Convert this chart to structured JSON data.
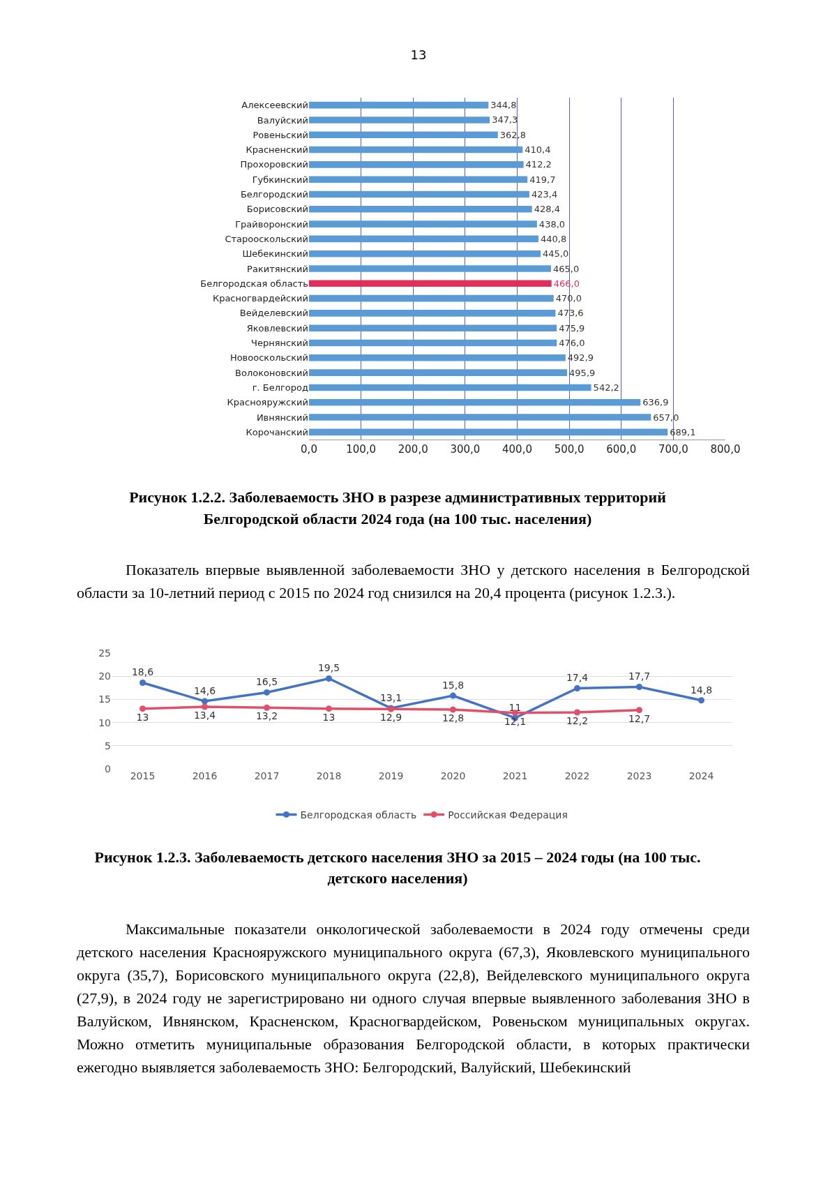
{
  "chart_data": [
    {
      "type": "bar",
      "orientation": "horizontal",
      "title": "Рисунок 1.2.2. Заболеваемость ЗНО в разрезе административных территорий Белгородской области 2024 года (на 100 тыс. населения)",
      "annotations": [
        "13",
        "Показатель впервые выявленной заболеваемости ЗНО у детского населения в Белгородской области за 10-летний период с 2015 по 2024 год снизился на 20,4 процента (рисунок 1.2.3.)."
      ],
      "categories": [
        "Алексеевский",
        "Валуйский",
        "Ровеньский",
        "Красненский",
        "Прохоровский",
        "Губкинский",
        "Белгородский",
        "Борисовский",
        "Грайворонский",
        "Старооскольский",
        "Шебекинский",
        "Ракитянский",
        "Белгородская область",
        "Красногвардейский",
        "Вейделевский",
        "Яковлевский",
        "Чернянский",
        "Новооскольский",
        "Волоконовский",
        "г. Белгород",
        "Краснояружский",
        "Ивнянский",
        "Корочанский"
      ],
      "values": [
        344.8,
        347.3,
        362.8,
        410.4,
        412.2,
        419.7,
        423.4,
        428.4,
        438.0,
        440.8,
        445.0,
        465.0,
        466.0,
        470.0,
        473.6,
        475.9,
        476.0,
        492.9,
        495.9,
        542.2,
        636.9,
        657.0,
        689.1
      ],
      "value_labels": [
        "344,8",
        "347,3",
        "362,8",
        "410,4",
        "412,2",
        "419,7",
        "423,4",
        "428,4",
        "438,0",
        "440,8",
        "445,0",
        "465,0",
        "466,0",
        "470,0",
        "473,6",
        "475,9",
        "476,0",
        "492,9",
        "495,9",
        "542,2",
        "636,9",
        "657,0",
        "689,1"
      ],
      "colors": [
        "#5b9bd5",
        "#5b9bd5",
        "#5b9bd5",
        "#5b9bd5",
        "#5b9bd5",
        "#5b9bd5",
        "#5b9bd5",
        "#5b9bd5",
        "#5b9bd5",
        "#5b9bd5",
        "#5b9bd5",
        "#5b9bd5",
        "#e0305a",
        "#5b9bd5",
        "#5b9bd5",
        "#5b9bd5",
        "#5b9bd5",
        "#5b9bd5",
        "#5b9bd5",
        "#5b9bd5",
        "#5b9bd5",
        "#5b9bd5",
        "#5b9bd5"
      ],
      "xlim": [
        0,
        800
      ],
      "xticks": [
        {
          "value": 0,
          "label": "0,0"
        },
        {
          "value": 100,
          "label": "100,0"
        },
        {
          "value": 200,
          "label": "200,0"
        },
        {
          "value": 300,
          "label": "300,0"
        },
        {
          "value": 400,
          "label": "400,0"
        },
        {
          "value": 500,
          "label": "500,0"
        },
        {
          "value": 600,
          "label": "600,0"
        },
        {
          "value": 700,
          "label": "700,0"
        },
        {
          "value": 800,
          "label": "800,0"
        }
      ],
      "grid": "x",
      "legend": false
    },
    {
      "type": "line",
      "title": "Рисунок 1.2.3. Заболеваемость детского населения ЗНО за 2015 – 2024 годы (на 100 тыс. детского населения)",
      "annotations": [
        "Максимальные показатели онкологической заболеваемости в 2024 году отмечены среди детского населения Краснояружского муниципального округа (67,3), Яковлевского муниципального округа (35,7), Борисовского муниципального округа (22,8), Вейделевского муниципального округа (27,9), в 2024 году не зарегистрировано ни одного случая впервые выявленного заболевания ЗНО в Валуйском, Ивнянском, Красненском, Красногвардейском, Ровеньском муниципальных округах. Можно отметить муниципальные образования Белгородской области, в которых практически ежегодно выявляется заболеваемость ЗНО: Белгородский, Валуйский, Шебекинский"
      ],
      "categories": [
        "2015",
        "2016",
        "2017",
        "2018",
        "2019",
        "2020",
        "2021",
        "2022",
        "2023",
        "2024"
      ],
      "series": [
        {
          "name": "Белгородская область",
          "color": "#4472c4",
          "values": [
            18.6,
            14.6,
            16.5,
            19.5,
            13.1,
            15.8,
            11,
            17.4,
            17.7,
            14.8
          ],
          "value_labels": [
            "18,6",
            "14,6",
            "16,5",
            "19,5",
            "13,1",
            "15,8",
            "11",
            "17,4",
            "17,7",
            "14,8"
          ]
        },
        {
          "name": "Российская Федерация",
          "color": "#e0506a",
          "values": [
            13,
            13.4,
            13.2,
            13,
            12.9,
            12.8,
            12.1,
            12.2,
            12.7,
            null
          ],
          "value_labels": [
            "13",
            "13,4",
            "13,2",
            "13",
            "12,9",
            "12,8",
            "12,1",
            "12,2",
            "12,7",
            null
          ]
        }
      ],
      "ylim": [
        0,
        25
      ],
      "yticks": [
        0,
        5,
        10,
        15,
        20,
        25
      ],
      "grid": "y",
      "legend": "bottom",
      "marker": "circle",
      "line_style": "solid"
    }
  ]
}
